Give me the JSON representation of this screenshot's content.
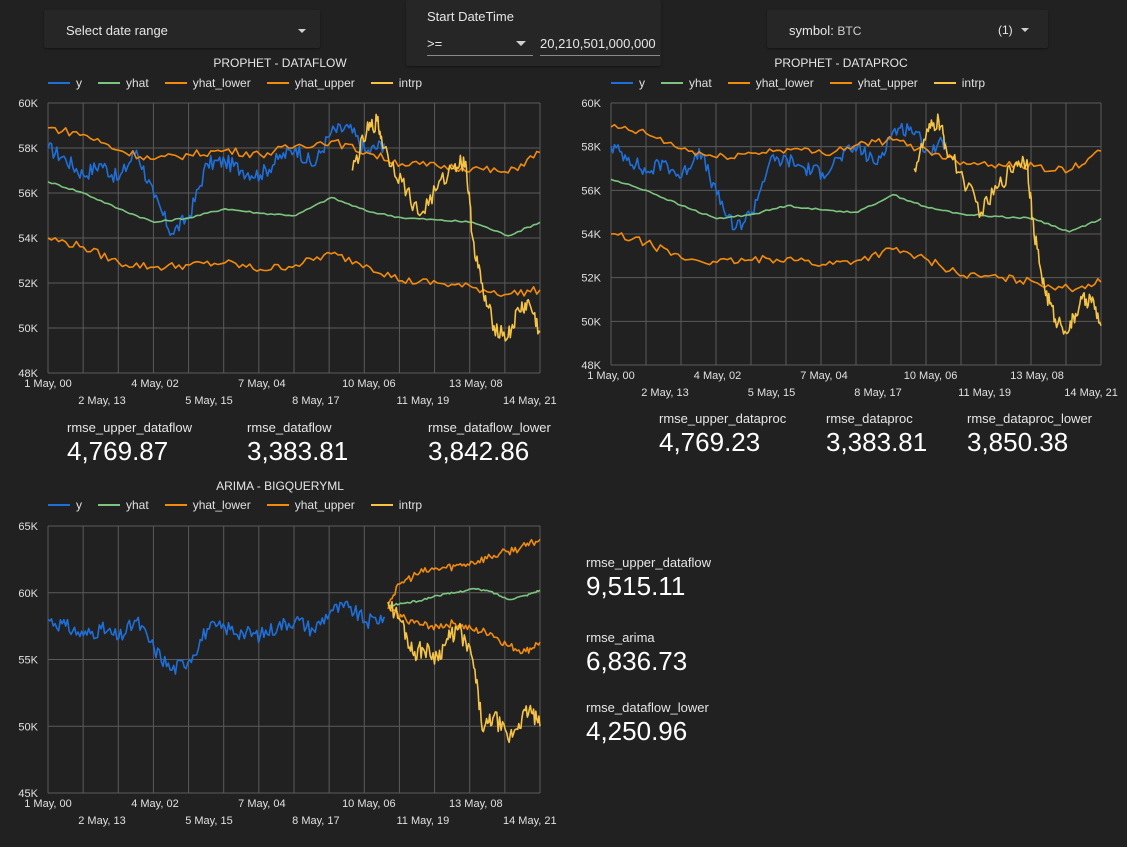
{
  "controls": {
    "date_range": {
      "label": "Select date range"
    },
    "start_datetime": {
      "title": "Start DateTime",
      "operator": ">=",
      "value": "20,210,501,000,000"
    },
    "symbol": {
      "label": "symbol",
      "value": "BTC",
      "count": "(1)"
    }
  },
  "charts": {
    "dataflow": {
      "title": "PROPHET - DATAFLOW",
      "legend": [
        "y",
        "yhat",
        "yhat_lower",
        "yhat_upper",
        "intrp"
      ],
      "y_ticks": [
        "60K",
        "58K",
        "56K",
        "54K",
        "52K",
        "50K",
        "48K"
      ],
      "x_ticks_top": [
        "1 May, 00",
        "4 May, 02",
        "7 May, 04",
        "10 May, 06",
        "13 May, 08"
      ],
      "x_ticks_bottom": [
        "2 May, 13",
        "5 May, 15",
        "8 May, 17",
        "11 May, 19",
        "14 May, 21"
      ]
    },
    "dataproc": {
      "title": "PROPHET - DATAPROC",
      "legend": [
        "y",
        "yhat",
        "yhat_lower",
        "yhat_upper",
        "intrp"
      ],
      "y_ticks": [
        "60K",
        "58K",
        "56K",
        "54K",
        "52K",
        "50K",
        "48K"
      ],
      "x_ticks_top": [
        "1 May, 00",
        "4 May, 02",
        "7 May, 04",
        "10 May, 06",
        "13 May, 08"
      ],
      "x_ticks_bottom": [
        "2 May, 13",
        "5 May, 15",
        "8 May, 17",
        "11 May, 19",
        "14 May, 21"
      ]
    },
    "arima": {
      "title": "ARIMA - BIGQUERYML",
      "legend": [
        "y",
        "yhat",
        "yhat_lower",
        "yhat_upper",
        "intrp"
      ],
      "y_ticks": [
        "65K",
        "60K",
        "55K",
        "50K",
        "45K"
      ],
      "x_ticks_top": [
        "1 May, 00",
        "4 May, 02",
        "7 May, 04",
        "10 May, 06",
        "13 May, 08"
      ],
      "x_ticks_bottom": [
        "2 May, 13",
        "5 May, 15",
        "8 May, 17",
        "11 May, 19",
        "14 May, 21"
      ]
    }
  },
  "metrics": {
    "dataflow": [
      {
        "label": "rmse_upper_dataflow",
        "value": "4,769.87"
      },
      {
        "label": "rmse_dataflow",
        "value": "3,383.81"
      },
      {
        "label": "rmse_dataflow_lower",
        "value": "3,842.86"
      }
    ],
    "dataproc": [
      {
        "label": "rmse_upper_dataproc",
        "value": "4,769.23"
      },
      {
        "label": "rmse_dataproc",
        "value": "3,383.81"
      },
      {
        "label": "rmse_dataproc_lower",
        "value": "3,850.38"
      }
    ],
    "arima": [
      {
        "label": "rmse_upper_dataflow",
        "value": "9,515.11"
      },
      {
        "label": "rmse_arima",
        "value": "6,836.73"
      },
      {
        "label": "rmse_dataflow_lower",
        "value": "4,250.96"
      }
    ]
  },
  "colors": {
    "y": "#1e6fd9",
    "yhat": "#7cc47f",
    "yhat_lower": "#f28b0c",
    "yhat_upper": "#f28b0c",
    "intrp": "#f6c445",
    "grid": "#5a5a5a"
  },
  "chart_data": [
    {
      "type": "line",
      "title": "PROPHET - DATAFLOW",
      "x_range": [
        "1 May, 00",
        "14 May, 21"
      ],
      "ylim": [
        48000,
        60000
      ],
      "grid": true,
      "legend_position": "top",
      "series": [
        {
          "name": "y",
          "x": [
            0,
            0.5,
            1,
            1.5,
            2,
            2.5,
            3,
            3.5,
            4,
            4.5,
            5,
            5.5,
            6,
            6.5,
            7,
            7.5,
            8,
            8.5,
            9,
            9.5
          ],
          "values": [
            58000,
            57500,
            56800,
            57300,
            56600,
            57900,
            55800,
            54200,
            55000,
            57300,
            57400,
            57000,
            56800,
            57500,
            58000,
            57200,
            58700,
            58900,
            57800,
            58200
          ]
        },
        {
          "name": "yhat",
          "x": [
            0,
            1,
            2,
            3,
            4,
            5,
            6,
            7,
            8,
            9,
            10,
            11,
            12,
            13,
            13.9
          ],
          "values": [
            56500,
            56000,
            55300,
            54700,
            54900,
            55300,
            55100,
            55000,
            55800,
            55200,
            54900,
            54800,
            54700,
            54100,
            54700
          ]
        },
        {
          "name": "yhat_lower",
          "x": [
            0,
            1,
            2,
            3,
            4,
            5,
            6,
            7,
            8,
            9,
            10,
            11,
            12,
            13,
            13.9
          ],
          "values": [
            54000,
            53600,
            52900,
            52700,
            52800,
            52900,
            52600,
            52800,
            53300,
            52800,
            52100,
            52000,
            51800,
            51500,
            51700
          ]
        },
        {
          "name": "yhat_upper",
          "x": [
            0,
            1,
            2,
            3,
            4,
            5,
            6,
            7,
            8,
            9,
            10,
            11,
            12,
            13,
            13.9
          ],
          "values": [
            58900,
            58600,
            57900,
            57500,
            57700,
            57900,
            57700,
            58100,
            58300,
            57800,
            57300,
            57200,
            57100,
            56900,
            57800
          ]
        },
        {
          "name": "intrp",
          "x": [
            8.6,
            9,
            9.3,
            9.5,
            10,
            10.5,
            11,
            11.5,
            11.8,
            12,
            12.3,
            12.6,
            13,
            13.3,
            13.6,
            13.9
          ],
          "values": [
            57000,
            58700,
            59200,
            58000,
            56500,
            55000,
            56200,
            57300,
            57400,
            54000,
            51500,
            50100,
            49600,
            50800,
            51100,
            49800
          ]
        }
      ]
    },
    {
      "type": "line",
      "title": "PROPHET - DATAPROC",
      "x_range": [
        "1 May, 00",
        "14 May, 21"
      ],
      "ylim": [
        48000,
        60000
      ],
      "grid": true,
      "legend_position": "top",
      "series": [
        {
          "name": "y",
          "x": [
            0,
            0.5,
            1,
            1.5,
            2,
            2.5,
            3,
            3.5,
            4,
            4.5,
            5,
            5.5,
            6,
            6.5,
            7,
            7.5,
            8,
            8.5,
            9,
            9.5
          ],
          "values": [
            58000,
            57500,
            56800,
            57300,
            56600,
            57900,
            55800,
            54200,
            55000,
            57300,
            57400,
            57000,
            56800,
            57500,
            58000,
            57200,
            58700,
            58900,
            57800,
            58200
          ]
        },
        {
          "name": "yhat",
          "x": [
            0,
            1,
            2,
            3,
            4,
            5,
            6,
            7,
            8,
            9,
            10,
            11,
            12,
            13,
            13.9
          ],
          "values": [
            56500,
            56000,
            55300,
            54700,
            54900,
            55300,
            55100,
            55000,
            55800,
            55200,
            54900,
            54800,
            54700,
            54100,
            54700
          ]
        },
        {
          "name": "yhat_lower",
          "x": [
            0,
            1,
            2,
            3,
            4,
            5,
            6,
            7,
            8,
            9,
            10,
            11,
            12,
            13,
            13.9
          ],
          "values": [
            54000,
            53600,
            52900,
            52700,
            52800,
            52900,
            52600,
            52800,
            53300,
            52800,
            52100,
            52000,
            51800,
            51500,
            51800
          ]
        },
        {
          "name": "yhat_upper",
          "x": [
            0,
            1,
            2,
            3,
            4,
            5,
            6,
            7,
            8,
            9,
            10,
            11,
            12,
            13,
            13.9
          ],
          "values": [
            58900,
            58600,
            57900,
            57500,
            57700,
            57900,
            57700,
            58100,
            58300,
            57800,
            57300,
            57200,
            57100,
            56900,
            57800
          ]
        },
        {
          "name": "intrp",
          "x": [
            8.6,
            9,
            9.3,
            9.5,
            10,
            10.5,
            11,
            11.5,
            11.8,
            12,
            12.3,
            12.6,
            13,
            13.3,
            13.6,
            13.9
          ],
          "values": [
            57000,
            58700,
            59200,
            58000,
            56500,
            55000,
            56200,
            57300,
            57400,
            54000,
            51500,
            50100,
            49600,
            50800,
            51100,
            49800
          ]
        }
      ]
    },
    {
      "type": "line",
      "title": "ARIMA - BIGQUERYML",
      "x_range": [
        "1 May, 00",
        "14 May, 21"
      ],
      "ylim": [
        45000,
        65000
      ],
      "grid": true,
      "legend_position": "top",
      "series": [
        {
          "name": "y",
          "x": [
            0,
            0.5,
            1,
            1.5,
            2,
            2.5,
            3,
            3.5,
            4,
            4.5,
            5,
            5.5,
            6,
            6.5,
            7,
            7.5,
            8,
            8.5,
            9,
            9.5
          ],
          "values": [
            58000,
            57500,
            56800,
            57300,
            56600,
            57900,
            55800,
            54200,
            55000,
            57300,
            57400,
            57000,
            56800,
            57500,
            58000,
            57200,
            58700,
            58900,
            57800,
            58200
          ]
        },
        {
          "name": "yhat",
          "x": [
            9.6,
            10,
            10.5,
            11,
            11.5,
            12,
            12.5,
            13,
            13.5,
            13.9
          ],
          "values": [
            59000,
            59200,
            59400,
            59800,
            60000,
            60300,
            60100,
            59500,
            59800,
            60200
          ]
        },
        {
          "name": "yhat_lower",
          "x": [
            9.6,
            10,
            10.5,
            11,
            11.5,
            12,
            12.5,
            13,
            13.5,
            13.9
          ],
          "values": [
            58800,
            58200,
            57600,
            57500,
            57700,
            57200,
            57000,
            56000,
            55600,
            56300
          ]
        },
        {
          "name": "yhat_upper",
          "x": [
            9.6,
            10,
            10.5,
            11,
            11.5,
            12,
            12.5,
            13,
            13.5,
            13.9
          ],
          "values": [
            59300,
            60800,
            61500,
            61800,
            62000,
            62300,
            62700,
            63100,
            63500,
            64000
          ]
        },
        {
          "name": "intrp",
          "x": [
            9.6,
            10,
            10.3,
            10.6,
            11,
            11.3,
            11.6,
            12,
            12.3,
            12.6,
            13,
            13.3,
            13.6,
            13.9
          ],
          "values": [
            59300,
            57800,
            55500,
            55800,
            55200,
            56500,
            57300,
            55000,
            49600,
            50800,
            49000,
            50200,
            51300,
            50000
          ]
        }
      ]
    }
  ]
}
